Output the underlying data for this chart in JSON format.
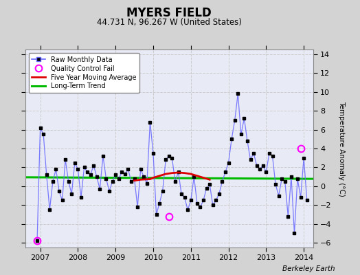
{
  "title": "MYERS FIELD",
  "subtitle": "44.731 N, 96.267 W (United States)",
  "ylabel": "Temperature Anomaly (°C)",
  "attribution": "Berkeley Earth",
  "background_color": "#d3d3d3",
  "plot_bg_color": "#e8eaf6",
  "ylim": [
    -6.5,
    14.5
  ],
  "xlim": [
    2006.6,
    2014.25
  ],
  "yticks": [
    -6,
    -4,
    -2,
    0,
    2,
    4,
    6,
    8,
    10,
    12,
    14
  ],
  "xticks": [
    2007,
    2008,
    2009,
    2010,
    2011,
    2012,
    2013,
    2014
  ],
  "monthly_data": {
    "times": [
      2006.917,
      2007.0,
      2007.083,
      2007.167,
      2007.25,
      2007.333,
      2007.417,
      2007.5,
      2007.583,
      2007.667,
      2007.75,
      2007.833,
      2007.917,
      2008.0,
      2008.083,
      2008.167,
      2008.25,
      2008.333,
      2008.417,
      2008.5,
      2008.583,
      2008.667,
      2008.75,
      2008.833,
      2008.917,
      2009.0,
      2009.083,
      2009.167,
      2009.25,
      2009.333,
      2009.417,
      2009.5,
      2009.583,
      2009.667,
      2009.75,
      2009.833,
      2009.917,
      2010.0,
      2010.083,
      2010.167,
      2010.25,
      2010.333,
      2010.417,
      2010.5,
      2010.583,
      2010.667,
      2010.75,
      2010.833,
      2010.917,
      2011.0,
      2011.083,
      2011.167,
      2011.25,
      2011.333,
      2011.417,
      2011.5,
      2011.583,
      2011.667,
      2011.75,
      2011.833,
      2011.917,
      2012.0,
      2012.083,
      2012.167,
      2012.25,
      2012.333,
      2012.417,
      2012.5,
      2012.583,
      2012.667,
      2012.75,
      2012.833,
      2012.917,
      2013.0,
      2013.083,
      2013.167,
      2013.25,
      2013.333,
      2013.417,
      2013.5,
      2013.583,
      2013.667,
      2013.75,
      2013.833,
      2013.917,
      2014.0,
      2014.083
    ],
    "values": [
      -5.8,
      6.2,
      5.5,
      1.2,
      -2.5,
      0.5,
      1.8,
      -0.5,
      -1.5,
      2.8,
      0.5,
      -0.8,
      2.5,
      1.8,
      -1.2,
      2.0,
      1.5,
      1.2,
      2.2,
      1.0,
      -0.3,
      3.2,
      0.8,
      -0.5,
      0.5,
      1.2,
      0.8,
      1.5,
      1.3,
      1.8,
      0.5,
      0.8,
      -2.2,
      1.8,
      1.0,
      0.3,
      6.8,
      3.5,
      -3.0,
      -1.8,
      -0.5,
      2.8,
      3.2,
      3.0,
      0.5,
      1.5,
      -0.8,
      -1.2,
      -2.5,
      -1.5,
      1.0,
      -1.8,
      -2.2,
      -1.5,
      -0.2,
      0.2,
      -2.0,
      -1.5,
      -0.8,
      0.5,
      1.5,
      2.5,
      5.0,
      7.0,
      9.8,
      5.5,
      7.2,
      4.8,
      2.8,
      3.5,
      2.2,
      1.8,
      2.2,
      1.5,
      3.5,
      3.2,
      0.2,
      -1.0,
      0.8,
      0.5,
      -3.2,
      1.0,
      -5.0,
      0.8,
      -1.2,
      3.0,
      -1.5
    ]
  },
  "qc_fail_points": {
    "times": [
      2006.917,
      2010.417,
      2013.917
    ],
    "values": [
      -5.8,
      -3.2,
      4.0
    ]
  },
  "moving_avg": {
    "times": [
      2009.5,
      2009.667,
      2009.917,
      2010.0,
      2010.167,
      2010.333,
      2010.5,
      2010.667,
      2010.833,
      2011.0,
      2011.167,
      2011.333,
      2011.5
    ],
    "values": [
      0.6,
      0.7,
      0.75,
      0.9,
      1.1,
      1.3,
      1.4,
      1.45,
      1.4,
      1.3,
      1.1,
      0.9,
      0.7
    ]
  },
  "long_term_trend": {
    "x": [
      2006.6,
      2014.25
    ],
    "y": [
      0.95,
      0.78
    ]
  },
  "line_color": "#6666ff",
  "dot_color": "#000000",
  "qc_color": "#ff00ff",
  "ma_color": "#dd0000",
  "trend_color": "#00bb00",
  "grid_color": "#cccccc"
}
